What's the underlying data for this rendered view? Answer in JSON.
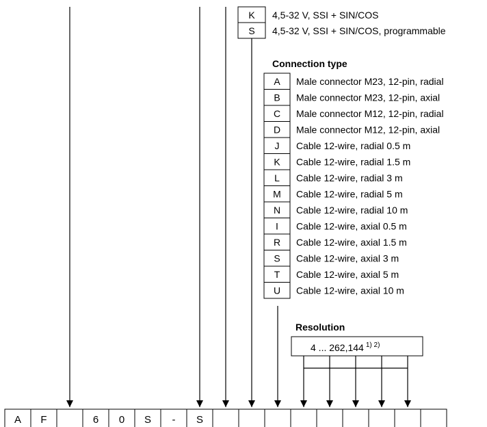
{
  "supply_options": [
    {
      "code": "K",
      "text": "4,5-32 V, SSI + SIN/COS"
    },
    {
      "code": "S",
      "text": "4,5-32 V, SSI + SIN/COS, programmable"
    }
  ],
  "connection": {
    "heading": "Connection type",
    "options": [
      {
        "code": "A",
        "text": "Male connector M23, 12-pin, radial"
      },
      {
        "code": "B",
        "text": "Male connector M23, 12-pin, axial"
      },
      {
        "code": "C",
        "text": "Male connector M12, 12-pin, radial"
      },
      {
        "code": "D",
        "text": "Male connector M12, 12-pin, axial"
      },
      {
        "code": "J",
        "text": "Cable 12-wire, radial 0.5 m"
      },
      {
        "code": "K",
        "text": "Cable 12-wire, radial 1.5 m"
      },
      {
        "code": "L",
        "text": "Cable 12-wire, radial 3 m"
      },
      {
        "code": "M",
        "text": "Cable 12-wire, radial 5 m"
      },
      {
        "code": "N",
        "text": "Cable 12-wire, radial 10 m"
      },
      {
        "code": "I",
        "text": "Cable 12-wire, axial 0.5 m"
      },
      {
        "code": "R",
        "text": "Cable 12-wire, axial 1.5 m"
      },
      {
        "code": "S",
        "text": "Cable 12-wire, axial 3 m"
      },
      {
        "code": "T",
        "text": "Cable 12-wire, axial 5 m"
      },
      {
        "code": "U",
        "text": "Cable 12-wire, axial 10 m"
      }
    ]
  },
  "resolution": {
    "heading": "Resolution",
    "range": "4 ... 262,144",
    "footnotes": "1) 2)"
  },
  "type_code": {
    "cells": [
      "A",
      "F",
      "",
      "6",
      "0",
      "S",
      "-",
      "S",
      "",
      "",
      "",
      "",
      "",
      "",
      "",
      "",
      ""
    ]
  }
}
